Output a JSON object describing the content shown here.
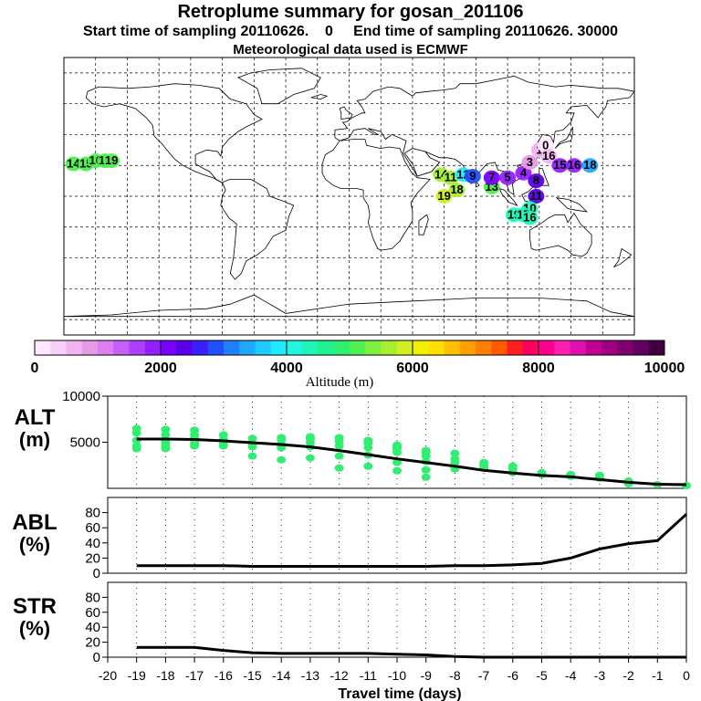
{
  "header": {
    "title": "Retroplume summary for gosan_201106",
    "subtitle": "Start time of sampling 20110626.    0     End time of sampling 20110626. 30000",
    "met": "Meteorological data used is ECMWF"
  },
  "colorbar": {
    "colors": [
      "#ffe8ff",
      "#f7cef7",
      "#f0b4f0",
      "#e69ae6",
      "#dd7fee",
      "#c860f5",
      "#b040ff",
      "#9520ff",
      "#7a00ff",
      "#5a00e8",
      "#3a20ff",
      "#2050ff",
      "#2080ff",
      "#20a8ff",
      "#20ccff",
      "#20e8ff",
      "#20f5e0",
      "#20f5b8",
      "#20f090",
      "#30ee70",
      "#50ee50",
      "#80f040",
      "#a8ee30",
      "#d0ee20",
      "#f0f000",
      "#ffe000",
      "#ffc000",
      "#ffa000",
      "#ff8000",
      "#ff5a00",
      "#ff2020",
      "#ff0060",
      "#ff0090",
      "#ff20b0",
      "#e010b0",
      "#c00090",
      "#a00080",
      "#800070",
      "#600060",
      "#400040"
    ],
    "tick_labels": [
      "0",
      "2000",
      "4000",
      "6000",
      "8000",
      "10000"
    ],
    "label": "Altitude (m)"
  },
  "chart_data": [
    {
      "type": "map",
      "projection": "equirectangular",
      "grid_spacing_deg": 20,
      "plume_points": [
        {
          "lon": -174,
          "lat": 21,
          "label": "14",
          "color": "#50ee50"
        },
        {
          "lon": -166,
          "lat": 21,
          "label": "15",
          "color": "#50ee50"
        },
        {
          "lon": -160,
          "lat": 23,
          "label": "16",
          "color": "#50ee50"
        },
        {
          "lon": -154,
          "lat": 23,
          "label": "18",
          "color": "#50ee50"
        },
        {
          "lon": -150,
          "lat": 23,
          "label": "19",
          "color": "#50ee50"
        },
        {
          "lon": 58,
          "lat": 14,
          "label": "14",
          "color": "#a8ee30"
        },
        {
          "lon": 64,
          "lat": 12,
          "label": "11",
          "color": "#a8ee30"
        },
        {
          "lon": 72,
          "lat": 14,
          "label": "12",
          "color": "#20e8ff"
        },
        {
          "lon": 68,
          "lat": 4,
          "label": "18",
          "color": "#a8ee30"
        },
        {
          "lon": 60,
          "lat": 0,
          "label": "19",
          "color": "#d0ee20"
        },
        {
          "lon": 90,
          "lat": 6,
          "label": "13",
          "color": "#50ee50"
        },
        {
          "lon": 78,
          "lat": 13,
          "label": "9",
          "color": "#2050ff"
        },
        {
          "lon": 90,
          "lat": 12,
          "label": "7",
          "color": "#7a00ff"
        },
        {
          "lon": 100,
          "lat": 12,
          "label": "5",
          "color": "#9520ff"
        },
        {
          "lon": 110,
          "lat": 15,
          "label": "4",
          "color": "#9520ff"
        },
        {
          "lon": 114,
          "lat": 22,
          "label": "3",
          "color": "#e69ae6"
        },
        {
          "lon": 120,
          "lat": 30,
          "label": "1",
          "color": "#f0b4f0"
        },
        {
          "lon": 124,
          "lat": 33,
          "label": "0",
          "color": "#ffe8ff"
        },
        {
          "lon": 126,
          "lat": 26,
          "label": "16",
          "color": "#f0b4f0"
        },
        {
          "lon": 133,
          "lat": 20,
          "label": "15",
          "color": "#9520ff"
        },
        {
          "lon": 142,
          "lat": 20,
          "label": "16",
          "color": "#9520ff"
        },
        {
          "lon": 152,
          "lat": 20,
          "label": "18",
          "color": "#20a8ff"
        },
        {
          "lon": 118,
          "lat": 10,
          "label": "8",
          "color": "#5a00e8"
        },
        {
          "lon": 118,
          "lat": 0,
          "label": "11",
          "color": "#5a00e8"
        },
        {
          "lon": 114,
          "lat": -8,
          "label": "10",
          "color": "#20f5b8"
        },
        {
          "lon": 104,
          "lat": -12,
          "label": "19",
          "color": "#20f5b8"
        },
        {
          "lon": 110,
          "lat": -12,
          "label": "17",
          "color": "#20f5b8"
        },
        {
          "lon": 114,
          "lat": -14,
          "label": "16",
          "color": "#20f5b8"
        }
      ]
    },
    {
      "type": "scatter+line",
      "panel": "ALT",
      "ylabel": "ALT\n(m)",
      "ylim": [
        0,
        10000
      ],
      "yticks": [
        5000,
        10000
      ],
      "x": [
        -19,
        -18,
        -17,
        -16,
        -15,
        -14,
        -13,
        -12,
        -11,
        -10,
        -9,
        -8,
        -7,
        -6,
        -5,
        -4,
        -3,
        -2,
        -1,
        0
      ],
      "line": [
        5350,
        5350,
        5300,
        5150,
        4950,
        4750,
        4500,
        4100,
        3650,
        3200,
        2800,
        2400,
        1950,
        1650,
        1400,
        1250,
        950,
        650,
        450,
        400
      ],
      "scatter_color": "#30ee70",
      "scatter": [
        [
          6500,
          6000,
          5200,
          4600,
          4300
        ],
        [
          6400,
          5800,
          5000,
          4600,
          4300
        ],
        [
          6300,
          5800,
          5400,
          4900,
          4600
        ],
        [
          5800,
          5300,
          4800,
          4600
        ],
        [
          5400,
          4800,
          4500,
          3500
        ],
        [
          5500,
          5300,
          4800,
          4400,
          3100
        ],
        [
          5600,
          5400,
          5000,
          4500,
          3300
        ],
        [
          5500,
          5100,
          4600,
          3500,
          2200
        ],
        [
          5200,
          4900,
          4400,
          3600,
          2400
        ],
        [
          4700,
          4500,
          4300,
          3900,
          2800,
          1900
        ],
        [
          4100,
          3900,
          3500,
          2900,
          2000,
          1200
        ],
        [
          3800,
          3200,
          2800,
          2100
        ],
        [
          2800,
          2500,
          2200
        ],
        [
          2400,
          2100,
          1700
        ],
        [
          1700,
          1500
        ],
        [
          1500,
          1300
        ],
        [
          1400,
          1100
        ],
        [
          800,
          500
        ],
        [
          400
        ],
        [
          300
        ]
      ]
    },
    {
      "type": "line",
      "panel": "ABL",
      "ylabel": "ABL\n(%)",
      "ylim": [
        0,
        100
      ],
      "yticks": [
        0,
        20,
        40,
        60,
        80
      ],
      "x": [
        -19,
        -18,
        -17,
        -16,
        -15,
        -14,
        -13,
        -12,
        -11,
        -10,
        -9,
        -8,
        -7,
        -6,
        -5,
        -4,
        -3,
        -2,
        -1,
        0
      ],
      "values": [
        10,
        10,
        10,
        10,
        9,
        9,
        9,
        9,
        9,
        9,
        9,
        10,
        10,
        11,
        13,
        20,
        32,
        39,
        43,
        78
      ]
    },
    {
      "type": "line",
      "panel": "STR",
      "ylabel": "STR\n(%)",
      "ylim": [
        0,
        100
      ],
      "yticks": [
        0,
        20,
        40,
        60,
        80
      ],
      "x": [
        -19,
        -18,
        -17,
        -16,
        -15,
        -14,
        -13,
        -12,
        -11,
        -10,
        -9,
        -8,
        -7,
        -6,
        -5,
        -4,
        -3,
        -2,
        -1,
        0
      ],
      "values": [
        13,
        13,
        13,
        9,
        6,
        5,
        5,
        5,
        5,
        4,
        3,
        1,
        0,
        0,
        0,
        0,
        0,
        0,
        0,
        0
      ]
    }
  ],
  "x_axis": {
    "ticks": [
      -20,
      -19,
      -18,
      -17,
      -16,
      -15,
      -14,
      -13,
      -12,
      -11,
      -10,
      -9,
      -8,
      -7,
      -6,
      -5,
      -4,
      -3,
      -2,
      -1,
      0
    ],
    "label": "Travel time (days)"
  }
}
